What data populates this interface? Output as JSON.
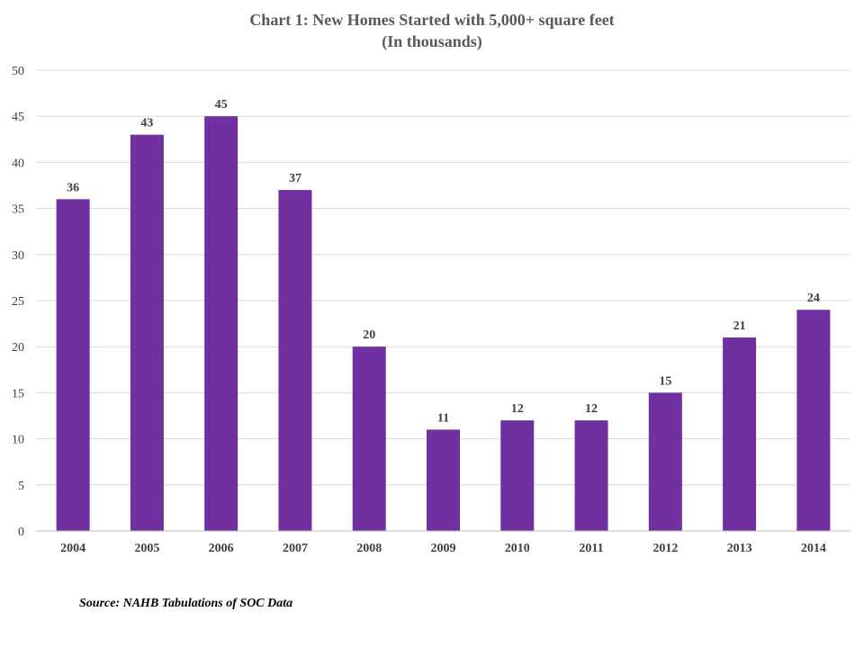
{
  "chart_data": {
    "type": "bar",
    "title": "Chart 1: New Homes Started with 5,000+ square feet",
    "subtitle": "(In thousands)",
    "categories": [
      "2004",
      "2005",
      "2006",
      "2007",
      "2008",
      "2009",
      "2010",
      "2011",
      "2012",
      "2013",
      "2014"
    ],
    "values": [
      36,
      43,
      45,
      37,
      20,
      11,
      12,
      12,
      15,
      21,
      24
    ],
    "ylim": [
      0,
      50
    ],
    "yticks": [
      0,
      5,
      10,
      15,
      20,
      25,
      30,
      35,
      40,
      45,
      50
    ],
    "grid": true,
    "legend": "none",
    "bar_color": "#7030A0",
    "data_labels": true
  },
  "source": "Source: NAHB Tabulations of SOC Data"
}
